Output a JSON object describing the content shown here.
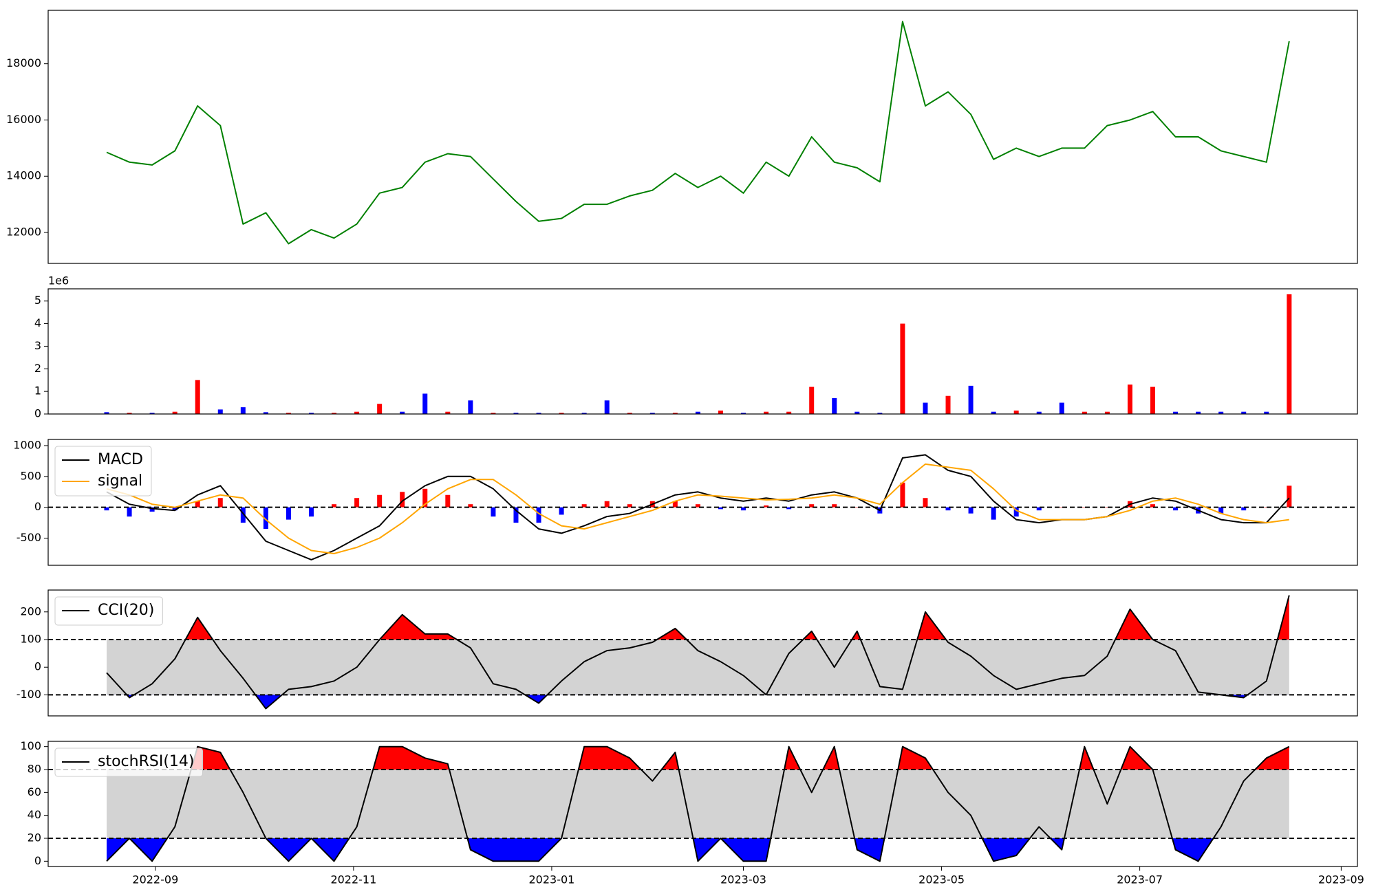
{
  "chart_data": [
    {
      "type": "line",
      "x": [
        19221,
        19228,
        19235,
        19242,
        19249,
        19256,
        19263,
        19270,
        19277,
        19284,
        19291,
        19298,
        19305,
        19312,
        19319,
        19326,
        19333,
        19340,
        19347,
        19354,
        19361,
        19368,
        19375,
        19382,
        19389,
        19396,
        19403,
        19410,
        19417,
        19424,
        19431,
        19438,
        19445,
        19452,
        19459,
        19466,
        19473,
        19480,
        19487,
        19494,
        19501,
        19508,
        19515,
        19522,
        19529,
        19536,
        19543,
        19550,
        19557,
        19564,
        19571,
        19578,
        19585
      ],
      "xlim": [
        19203,
        19606
      ],
      "series": [
        {
          "color": "green",
          "values": [
            14850,
            14500,
            14400,
            14900,
            16500,
            15800,
            12300,
            12700,
            11600,
            12100,
            11800,
            12300,
            13400,
            13600,
            14500,
            14800,
            14700,
            13900,
            13100,
            12400,
            12500,
            13000,
            13000,
            13300,
            13500,
            14100,
            13600,
            14000,
            13400,
            14500,
            14000,
            15400,
            14500,
            14300,
            13800,
            19500,
            16500,
            17000,
            16200,
            14600,
            15000,
            14700,
            15000,
            15000,
            15800,
            16000,
            16300,
            15400,
            15400,
            14900,
            14700,
            14500,
            18800
          ]
        }
      ],
      "ylim": [
        10900,
        19900
      ],
      "yticks": [
        12000,
        14000,
        16000,
        18000
      ]
    },
    {
      "type": "bar",
      "x": [
        19221,
        19228,
        19235,
        19242,
        19249,
        19256,
        19263,
        19270,
        19277,
        19284,
        19291,
        19298,
        19305,
        19312,
        19319,
        19326,
        19333,
        19340,
        19347,
        19354,
        19361,
        19368,
        19375,
        19382,
        19389,
        19396,
        19403,
        19410,
        19417,
        19424,
        19431,
        19438,
        19445,
        19452,
        19459,
        19466,
        19473,
        19480,
        19487,
        19494,
        19501,
        19508,
        19515,
        19522,
        19529,
        19536,
        19543,
        19550,
        19557,
        19564,
        19571,
        19578,
        19585
      ],
      "xlim": [
        19203,
        19606
      ],
      "values": [
        80000,
        50000,
        50000,
        100000,
        1500000,
        200000,
        300000,
        80000,
        50000,
        50000,
        50000,
        100000,
        450000,
        100000,
        900000,
        100000,
        600000,
        50000,
        50000,
        50000,
        50000,
        50000,
        600000,
        50000,
        50000,
        50000,
        100000,
        150000,
        50000,
        100000,
        100000,
        1200000,
        700000,
        100000,
        50000,
        4000000,
        500000,
        800000,
        1250000,
        100000,
        150000,
        100000,
        500000,
        100000,
        100000,
        1300000,
        1200000,
        100000,
        100000,
        100000,
        100000,
        100000,
        5300000
      ],
      "bar_colors": [
        "blue",
        "red",
        "blue",
        "red",
        "red",
        "blue",
        "blue",
        "blue",
        "red",
        "blue",
        "red",
        "red",
        "red",
        "blue",
        "blue",
        "red",
        "blue",
        "red",
        "blue",
        "blue",
        "red",
        "blue",
        "blue",
        "red",
        "blue",
        "red",
        "blue",
        "red",
        "blue",
        "red",
        "red",
        "red",
        "blue",
        "blue",
        "blue",
        "red",
        "blue",
        "red",
        "blue",
        "blue",
        "red",
        "blue",
        "blue",
        "red",
        "red",
        "red",
        "red",
        "blue",
        "blue",
        "blue",
        "blue",
        "blue",
        "red"
      ],
      "ylim": [
        0,
        5540000
      ],
      "yticks": [
        0,
        {
          "value": 1000000,
          "label": "1"
        },
        {
          "value": 2000000,
          "label": "2"
        },
        {
          "value": 3000000,
          "label": "3"
        },
        {
          "value": 4000000,
          "label": "4"
        },
        {
          "value": 5000000,
          "label": "5"
        }
      ],
      "offset_label": "1e6"
    },
    {
      "type": "line",
      "x": [
        19221,
        19228,
        19235,
        19242,
        19249,
        19256,
        19263,
        19270,
        19277,
        19284,
        19291,
        19298,
        19305,
        19312,
        19319,
        19326,
        19333,
        19340,
        19347,
        19354,
        19361,
        19368,
        19375,
        19382,
        19389,
        19396,
        19403,
        19410,
        19417,
        19424,
        19431,
        19438,
        19445,
        19452,
        19459,
        19466,
        19473,
        19480,
        19487,
        19494,
        19501,
        19508,
        19515,
        19522,
        19529,
        19536,
        19543,
        19550,
        19557,
        19564,
        19571,
        19578,
        19585
      ],
      "xlim": [
        19203,
        19606
      ],
      "series": [
        {
          "type": "bar",
          "positive_color": "red",
          "negative_color": "blue",
          "values": [
            -50,
            -150,
            -70,
            -50,
            100,
            150,
            -250,
            -350,
            -200,
            -150,
            50,
            150,
            200,
            250,
            300,
            200,
            50,
            -150,
            -250,
            -250,
            -120,
            50,
            100,
            50,
            100,
            100,
            50,
            -30,
            -50,
            30,
            -30,
            50,
            50,
            0,
            -100,
            400,
            150,
            -50,
            -100,
            -200,
            -150,
            -50,
            0,
            0,
            0,
            100,
            50,
            -50,
            -100,
            -100,
            -50,
            0,
            350
          ]
        },
        {
          "name": "MACD",
          "color": "black",
          "values": [
            250,
            50,
            -20,
            -50,
            200,
            350,
            -100,
            -550,
            -700,
            -850,
            -700,
            -500,
            -300,
            100,
            350,
            500,
            500,
            300,
            -50,
            -350,
            -420,
            -300,
            -150,
            -100,
            50,
            200,
            250,
            150,
            100,
            150,
            100,
            200,
            250,
            150,
            -50,
            800,
            850,
            600,
            500,
            100,
            -200,
            -250,
            -200,
            -200,
            -150,
            50,
            150,
            100,
            -50,
            -200,
            -250,
            -250,
            150
          ]
        },
        {
          "name": "signal",
          "color": "orange",
          "values": [
            300,
            200,
            50,
            0,
            100,
            200,
            150,
            -200,
            -500,
            -700,
            -750,
            -650,
            -500,
            -250,
            50,
            300,
            450,
            450,
            200,
            -100,
            -300,
            -350,
            -250,
            -150,
            -50,
            100,
            200,
            180,
            150,
            120,
            130,
            150,
            200,
            150,
            50,
            400,
            700,
            650,
            600,
            300,
            -50,
            -200,
            -200,
            -200,
            -150,
            -50,
            100,
            150,
            50,
            -100,
            -200,
            -250,
            -200
          ]
        }
      ],
      "ylim": [
        -940,
        1100
      ],
      "yticks": [
        -500,
        0,
        500,
        1000
      ],
      "reference_lines": [
        0
      ],
      "legend": "upper left"
    },
    {
      "type": "line",
      "x": [
        19221,
        19228,
        19235,
        19242,
        19249,
        19256,
        19263,
        19270,
        19277,
        19284,
        19291,
        19298,
        19305,
        19312,
        19319,
        19326,
        19333,
        19340,
        19347,
        19354,
        19361,
        19368,
        19375,
        19382,
        19389,
        19396,
        19403,
        19410,
        19417,
        19424,
        19431,
        19438,
        19445,
        19452,
        19459,
        19466,
        19473,
        19480,
        19487,
        19494,
        19501,
        19508,
        19515,
        19522,
        19529,
        19536,
        19543,
        19550,
        19557,
        19564,
        19571,
        19578,
        19585
      ],
      "xlim": [
        19203,
        19606
      ],
      "series": [
        {
          "name": "CCI(20)",
          "color": "black",
          "values": [
            -20,
            -110,
            -60,
            30,
            180,
            60,
            -40,
            -150,
            -80,
            -70,
            -50,
            0,
            100,
            190,
            120,
            120,
            70,
            -60,
            -80,
            -130,
            -50,
            20,
            60,
            70,
            90,
            140,
            60,
            20,
            -30,
            -100,
            50,
            130,
            0,
            130,
            -70,
            -80,
            200,
            90,
            40,
            -30,
            -80,
            -60,
            -40,
            -30,
            40,
            210,
            100,
            60,
            -90,
            -100,
            -110,
            -50,
            260
          ]
        }
      ],
      "ylim": [
        -176,
        279
      ],
      "yticks": [
        -100,
        0,
        100,
        200
      ],
      "bands": {
        "upper": 100,
        "lower": -100,
        "upper_color": "red",
        "lower_color": "blue",
        "band_color": "lightgray"
      },
      "legend": "upper left"
    },
    {
      "type": "line",
      "x": [
        19221,
        19228,
        19235,
        19242,
        19249,
        19256,
        19263,
        19270,
        19277,
        19284,
        19291,
        19298,
        19305,
        19312,
        19319,
        19326,
        19333,
        19340,
        19347,
        19354,
        19361,
        19368,
        19375,
        19382,
        19389,
        19396,
        19403,
        19410,
        19417,
        19424,
        19431,
        19438,
        19445,
        19452,
        19459,
        19466,
        19473,
        19480,
        19487,
        19494,
        19501,
        19508,
        19515,
        19522,
        19529,
        19536,
        19543,
        19550,
        19557,
        19564,
        19571,
        19578,
        19585
      ],
      "xlim": [
        19203,
        19606
      ],
      "xticks": [
        {
          "value": 19236,
          "label": "2022-09"
        },
        {
          "value": 19297,
          "label": "2022-11"
        },
        {
          "value": 19358,
          "label": "2023-01"
        },
        {
          "value": 19417,
          "label": "2023-03"
        },
        {
          "value": 19478,
          "label": "2023-05"
        },
        {
          "value": 19539,
          "label": "2023-07"
        },
        {
          "value": 19601,
          "label": "2023-09"
        }
      ],
      "series": [
        {
          "name": "stochRSI(14)",
          "color": "black",
          "values": [
            0,
            20,
            0,
            30,
            100,
            95,
            60,
            20,
            0,
            20,
            0,
            30,
            100,
            100,
            90,
            85,
            10,
            0,
            0,
            0,
            20,
            100,
            100,
            90,
            70,
            95,
            0,
            20,
            0,
            0,
            100,
            60,
            100,
            10,
            0,
            100,
            90,
            60,
            40,
            0,
            5,
            30,
            10,
            100,
            50,
            100,
            80,
            10,
            0,
            30,
            70,
            90,
            100
          ]
        }
      ],
      "ylim": [
        -4.6,
        104.6
      ],
      "yticks": [
        0,
        20,
        40,
        60,
        80,
        100
      ],
      "bands": {
        "upper": 80,
        "lower": 20,
        "upper_color": "red",
        "lower_color": "blue",
        "band_color": "lightgray"
      },
      "legend": "upper left"
    }
  ]
}
